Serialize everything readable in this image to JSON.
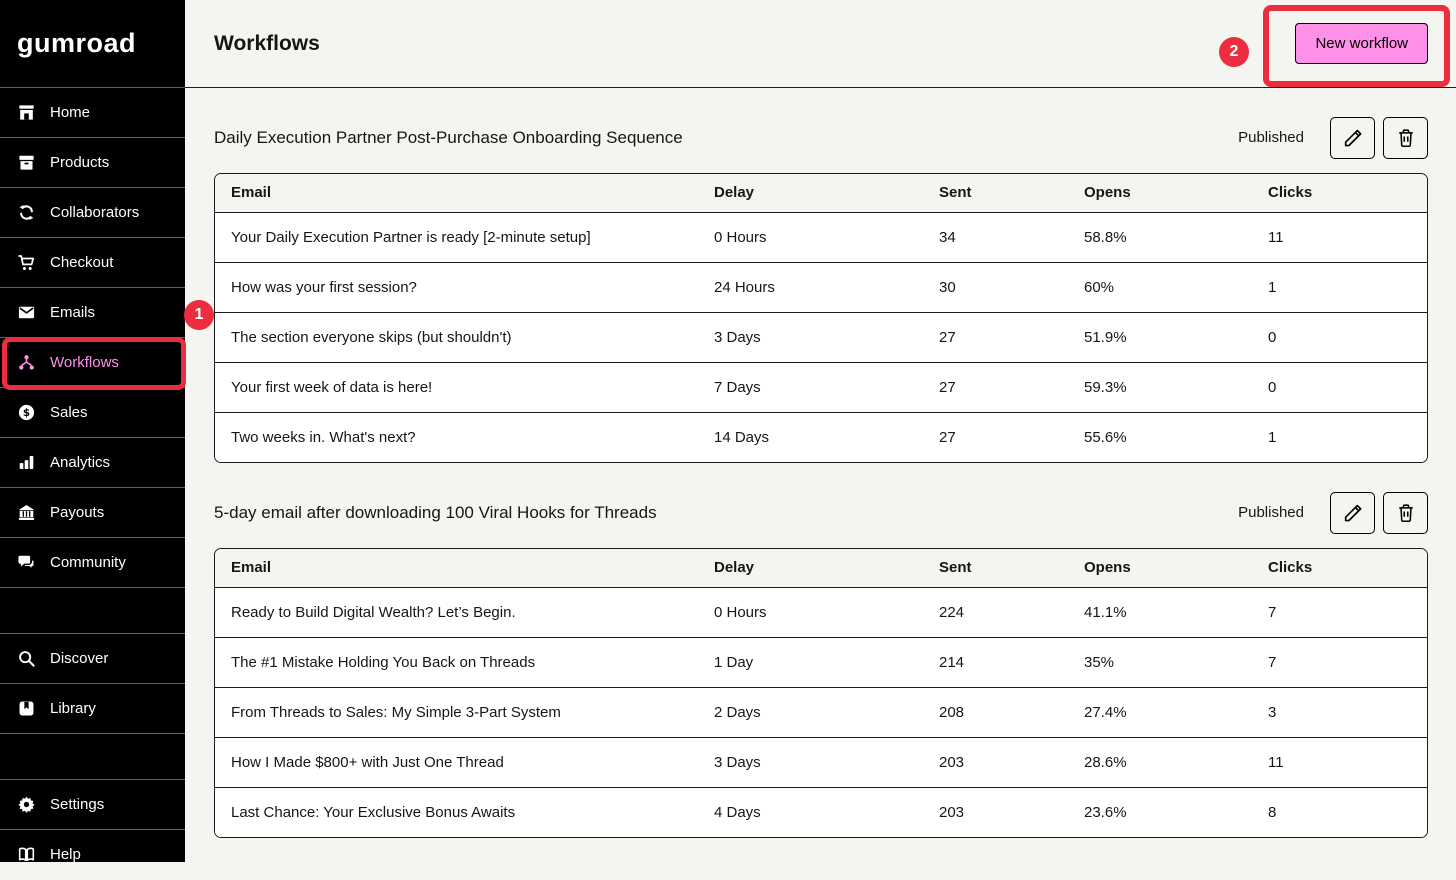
{
  "brand": {
    "logo": "gumroad"
  },
  "colors": {
    "accent_pink": "#ff90e8",
    "annotation_red": "#ec2d3f"
  },
  "sidebar": {
    "sections": [
      [
        {
          "id": "home",
          "label": "Home",
          "icon": "storefront-icon",
          "active": false
        },
        {
          "id": "products",
          "label": "Products",
          "icon": "box-icon",
          "active": false
        },
        {
          "id": "collaborators",
          "label": "Collaborators",
          "icon": "collaborators-icon",
          "active": false
        },
        {
          "id": "checkout",
          "label": "Checkout",
          "icon": "cart-icon",
          "active": false
        },
        {
          "id": "emails",
          "label": "Emails",
          "icon": "envelope-icon",
          "active": false
        },
        {
          "id": "workflows",
          "label": "Workflows",
          "icon": "workflow-icon",
          "active": true
        },
        {
          "id": "sales",
          "label": "Sales",
          "icon": "dollar-icon",
          "active": false
        },
        {
          "id": "analytics",
          "label": "Analytics",
          "icon": "bar-chart-icon",
          "active": false
        },
        {
          "id": "payouts",
          "label": "Payouts",
          "icon": "bank-icon",
          "active": false
        },
        {
          "id": "community",
          "label": "Community",
          "icon": "chat-icon",
          "active": false
        }
      ],
      [
        {
          "id": "discover",
          "label": "Discover",
          "icon": "search-icon",
          "active": false
        },
        {
          "id": "library",
          "label": "Library",
          "icon": "bookmark-icon",
          "active": false
        }
      ],
      [
        {
          "id": "settings",
          "label": "Settings",
          "icon": "gear-icon",
          "active": false
        },
        {
          "id": "help",
          "label": "Help",
          "icon": "book-icon",
          "active": false
        }
      ]
    ]
  },
  "header": {
    "title": "Workflows",
    "new_workflow_label": "New workflow"
  },
  "workflows": [
    {
      "title": "Daily Execution Partner Post-Purchase Onboarding Sequence",
      "status": "Published",
      "columns": [
        "Email",
        "Delay",
        "Sent",
        "Opens",
        "Clicks"
      ],
      "rows": [
        {
          "email": "Your Daily Execution Partner is ready [2-minute setup]",
          "delay": "0 Hours",
          "sent": "34",
          "opens": "58.8%",
          "clicks": "11"
        },
        {
          "email": "How was your first session?",
          "delay": "24 Hours",
          "sent": "30",
          "opens": "60%",
          "clicks": "1"
        },
        {
          "email": "The section everyone skips (but shouldn't)",
          "delay": "3 Days",
          "sent": "27",
          "opens": "51.9%",
          "clicks": "0"
        },
        {
          "email": "Your first week of data is here!",
          "delay": "7 Days",
          "sent": "27",
          "opens": "59.3%",
          "clicks": "0"
        },
        {
          "email": "Two weeks in. What's next?",
          "delay": "14 Days",
          "sent": "27",
          "opens": "55.6%",
          "clicks": "1"
        }
      ]
    },
    {
      "title": "5-day email after downloading 100 Viral Hooks for Threads",
      "status": "Published",
      "columns": [
        "Email",
        "Delay",
        "Sent",
        "Opens",
        "Clicks"
      ],
      "rows": [
        {
          "email": "Ready to Build Digital Wealth? Let’s Begin.",
          "delay": "0 Hours",
          "sent": "224",
          "opens": "41.1%",
          "clicks": "7"
        },
        {
          "email": "The #1 Mistake Holding You Back on Threads",
          "delay": "1 Day",
          "sent": "214",
          "opens": "35%",
          "clicks": "7"
        },
        {
          "email": "From Threads to Sales: My Simple 3-Part System",
          "delay": "2 Days",
          "sent": "208",
          "opens": "27.4%",
          "clicks": "3"
        },
        {
          "email": "How I Made $800+ with Just One Thread",
          "delay": "3 Days",
          "sent": "203",
          "opens": "28.6%",
          "clicks": "11"
        },
        {
          "email": "Last Chance: Your Exclusive Bonus Awaits",
          "delay": "4 Days",
          "sent": "203",
          "opens": "23.6%",
          "clicks": "8"
        }
      ]
    }
  ],
  "annotations": {
    "steps": [
      "1",
      "2"
    ]
  }
}
